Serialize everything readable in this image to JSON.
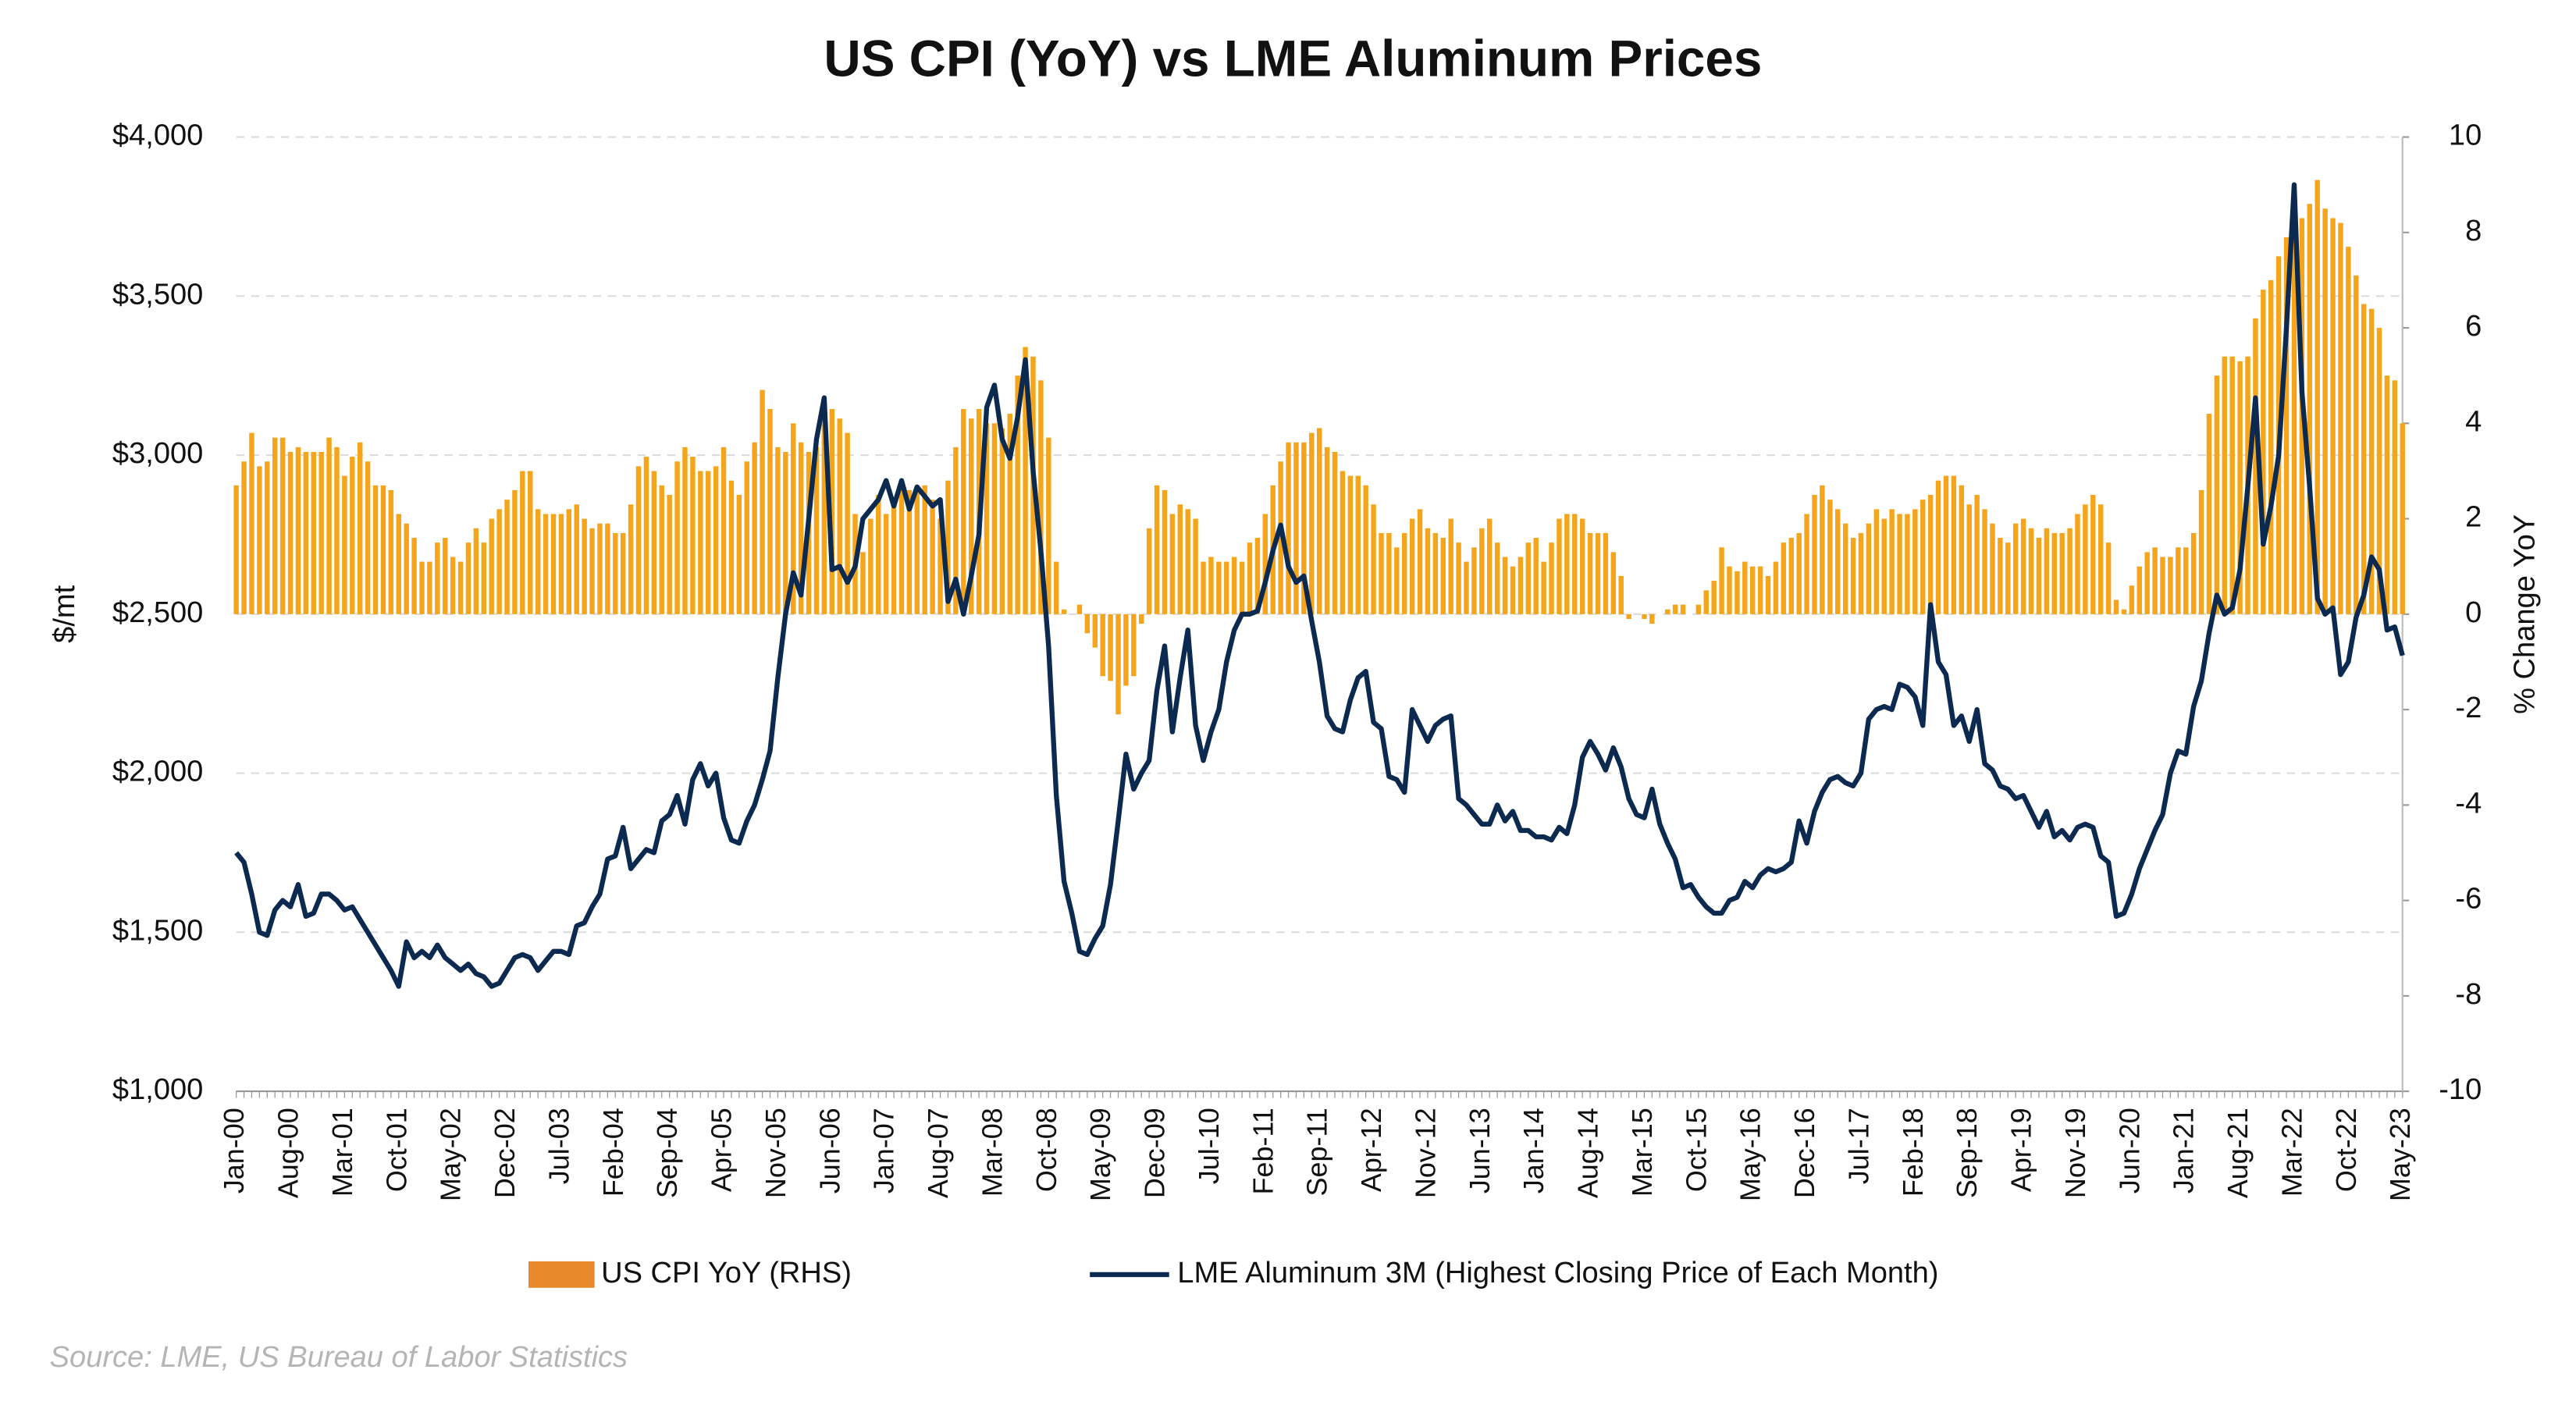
{
  "chart_data": {
    "type": "bar-line",
    "title": "US CPI (YoY) vs LME Aluminum Prices",
    "y_label": "$/mt",
    "y2_label": "% Change YoY",
    "source": "Source: LME, US Bureau of Labor Statistics",
    "grid": true,
    "legend": "bottom",
    "categories": [
      "Jan-00",
      null,
      null,
      null,
      null,
      null,
      null,
      "Aug-00",
      null,
      null,
      null,
      null,
      null,
      null,
      "Mar-01",
      null,
      null,
      null,
      null,
      null,
      null,
      "Oct-01",
      null,
      null,
      null,
      null,
      null,
      null,
      "May-02",
      null,
      null,
      null,
      null,
      null,
      null,
      "Dec-02",
      null,
      null,
      null,
      null,
      null,
      null,
      "Jul-03",
      null,
      null,
      null,
      null,
      null,
      null,
      "Feb-04",
      null,
      null,
      null,
      null,
      null,
      null,
      "Sep-04",
      null,
      null,
      null,
      null,
      null,
      null,
      "Apr-05",
      null,
      null,
      null,
      null,
      null,
      null,
      "Nov-05",
      null,
      null,
      null,
      null,
      null,
      null,
      "Jun-06",
      null,
      null,
      null,
      null,
      null,
      null,
      "Jan-07",
      null,
      null,
      null,
      null,
      null,
      null,
      "Aug-07",
      null,
      null,
      null,
      null,
      null,
      null,
      "Mar-08",
      null,
      null,
      null,
      null,
      null,
      null,
      "Oct-08",
      null,
      null,
      null,
      null,
      null,
      null,
      "May-09",
      null,
      null,
      null,
      null,
      null,
      null,
      "Dec-09",
      null,
      null,
      null,
      null,
      null,
      null,
      "Jul-10",
      null,
      null,
      null,
      null,
      null,
      null,
      "Feb-11",
      null,
      null,
      null,
      null,
      null,
      null,
      "Sep-11",
      null,
      null,
      null,
      null,
      null,
      null,
      "Apr-12",
      null,
      null,
      null,
      null,
      null,
      null,
      "Nov-12",
      null,
      null,
      null,
      null,
      null,
      null,
      "Jun-13",
      null,
      null,
      null,
      null,
      null,
      null,
      "Jan-14",
      null,
      null,
      null,
      null,
      null,
      null,
      "Aug-14",
      null,
      null,
      null,
      null,
      null,
      null,
      "Mar-15",
      null,
      null,
      null,
      null,
      null,
      null,
      "Oct-15",
      null,
      null,
      null,
      null,
      null,
      null,
      "May-16",
      null,
      null,
      null,
      null,
      null,
      null,
      "Dec-16",
      null,
      null,
      null,
      null,
      null,
      null,
      "Jul-17",
      null,
      null,
      null,
      null,
      null,
      null,
      "Feb-18",
      null,
      null,
      null,
      null,
      null,
      null,
      "Sep-18",
      null,
      null,
      null,
      null,
      null,
      null,
      "Apr-19",
      null,
      null,
      null,
      null,
      null,
      null,
      "Nov-19",
      null,
      null,
      null,
      null,
      null,
      null,
      "Jun-20",
      null,
      null,
      null,
      null,
      null,
      null,
      "Jan-21",
      null,
      null,
      null,
      null,
      null,
      null,
      "Aug-21",
      null,
      null,
      null,
      null,
      null,
      null,
      "Mar-22",
      null,
      null,
      null,
      null,
      null,
      null,
      "Oct-22",
      null,
      null,
      null,
      null,
      null,
      null,
      "May-23"
    ],
    "series": [
      {
        "name": "US CPI YoY (RHS)",
        "type": "bar",
        "axis": "y2",
        "color": "#f5a51c",
        "legend_color": "#e8892b",
        "values": [
          2.7,
          3.2,
          3.8,
          3.1,
          3.2,
          3.7,
          3.7,
          3.4,
          3.5,
          3.4,
          3.4,
          3.4,
          3.7,
          3.5,
          2.9,
          3.3,
          3.6,
          3.2,
          2.7,
          2.7,
          2.6,
          2.1,
          1.9,
          1.6,
          1.1,
          1.1,
          1.5,
          1.6,
          1.2,
          1.1,
          1.5,
          1.8,
          1.5,
          2.0,
          2.2,
          2.4,
          2.6,
          3.0,
          3.0,
          2.2,
          2.1,
          2.1,
          2.1,
          2.2,
          2.3,
          2.0,
          1.8,
          1.9,
          1.9,
          1.7,
          1.7,
          2.3,
          3.1,
          3.3,
          3.0,
          2.7,
          2.5,
          3.2,
          3.5,
          3.3,
          3.0,
          3.0,
          3.1,
          3.5,
          2.8,
          2.5,
          3.2,
          3.6,
          4.7,
          4.3,
          3.5,
          3.4,
          4.0,
          3.6,
          3.4,
          3.5,
          4.2,
          4.3,
          4.1,
          3.8,
          2.1,
          1.3,
          2.0,
          2.5,
          2.1,
          2.4,
          2.8,
          2.6,
          2.7,
          2.7,
          2.4,
          2.0,
          2.8,
          3.5,
          4.3,
          4.1,
          4.3,
          4.0,
          4.0,
          3.9,
          4.2,
          5.0,
          5.6,
          5.4,
          4.9,
          3.7,
          1.1,
          0.1,
          0.0,
          0.2,
          -0.4,
          -0.7,
          -1.3,
          -1.4,
          -2.1,
          -1.5,
          -1.3,
          -0.2,
          1.8,
          2.7,
          2.6,
          2.1,
          2.3,
          2.2,
          2.0,
          1.1,
          1.2,
          1.1,
          1.1,
          1.2,
          1.1,
          1.5,
          1.6,
          2.1,
          2.7,
          3.2,
          3.6,
          3.6,
          3.6,
          3.8,
          3.9,
          3.5,
          3.4,
          3.0,
          2.9,
          2.9,
          2.7,
          2.3,
          1.7,
          1.7,
          1.4,
          1.7,
          2.0,
          2.2,
          1.8,
          1.7,
          1.6,
          2.0,
          1.5,
          1.1,
          1.4,
          1.8,
          2.0,
          1.5,
          1.2,
          1.0,
          1.2,
          1.5,
          1.6,
          1.1,
          1.5,
          2.0,
          2.1,
          2.1,
          2.0,
          1.7,
          1.7,
          1.7,
          1.3,
          0.8,
          -0.1,
          0.0,
          -0.1,
          -0.2,
          0.0,
          0.1,
          0.2,
          0.2,
          0.0,
          0.2,
          0.5,
          0.7,
          1.4,
          1.0,
          0.9,
          1.1,
          1.0,
          1.0,
          0.8,
          1.1,
          1.5,
          1.6,
          1.7,
          2.1,
          2.5,
          2.7,
          2.4,
          2.2,
          1.9,
          1.6,
          1.7,
          1.9,
          2.2,
          2.0,
          2.2,
          2.1,
          2.1,
          2.2,
          2.4,
          2.5,
          2.8,
          2.9,
          2.9,
          2.7,
          2.3,
          2.5,
          2.2,
          1.9,
          1.6,
          1.5,
          1.9,
          2.0,
          1.8,
          1.6,
          1.8,
          1.7,
          1.7,
          1.8,
          2.1,
          2.3,
          2.5,
          2.3,
          1.5,
          0.3,
          0.1,
          0.6,
          1.0,
          1.3,
          1.4,
          1.2,
          1.2,
          1.4,
          1.4,
          1.7,
          2.6,
          4.2,
          5.0,
          5.4,
          5.4,
          5.3,
          5.4,
          6.2,
          6.8,
          7.0,
          7.5,
          7.9,
          8.5,
          8.3,
          8.6,
          9.1,
          8.5,
          8.3,
          8.2,
          7.7,
          7.1,
          6.5,
          6.4,
          6.0,
          5.0,
          4.9,
          4.0
        ]
      },
      {
        "name": "LME Aluminum 3M (Highest Closing Price of Each Month)",
        "type": "line",
        "axis": "y",
        "color": "#0c2a4f",
        "values": [
          1750,
          1720,
          1620,
          1500,
          1490,
          1570,
          1600,
          1580,
          1650,
          1550,
          1560,
          1620,
          1620,
          1600,
          1570,
          1580,
          1540,
          1500,
          1460,
          1420,
          1380,
          1330,
          1470,
          1420,
          1440,
          1420,
          1460,
          1420,
          1400,
          1380,
          1400,
          1370,
          1360,
          1330,
          1340,
          1380,
          1420,
          1430,
          1420,
          1380,
          1410,
          1440,
          1440,
          1430,
          1520,
          1530,
          1580,
          1620,
          1730,
          1740,
          1830,
          1700,
          1730,
          1760,
          1750,
          1850,
          1870,
          1930,
          1840,
          1980,
          2030,
          1960,
          2000,
          1860,
          1790,
          1780,
          1850,
          1900,
          1980,
          2070,
          2300,
          2500,
          2630,
          2560,
          2800,
          3050,
          3180,
          2640,
          2650,
          2600,
          2650,
          2800,
          2830,
          2860,
          2920,
          2840,
          2920,
          2830,
          2900,
          2870,
          2840,
          2860,
          2540,
          2610,
          2500,
          2620,
          2750,
          3150,
          3220,
          3050,
          2990,
          3120,
          3300,
          2950,
          2700,
          2400,
          1930,
          1660,
          1560,
          1440,
          1430,
          1480,
          1520,
          1650,
          1850,
          2060,
          1950,
          2000,
          2040,
          2260,
          2400,
          2130,
          2300,
          2450,
          2150,
          2040,
          2130,
          2200,
          2350,
          2450,
          2500,
          2500,
          2510,
          2600,
          2700,
          2780,
          2650,
          2600,
          2620,
          2480,
          2350,
          2180,
          2140,
          2130,
          2230,
          2300,
          2320,
          2160,
          2140,
          1990,
          1980,
          1940,
          2200,
          2150,
          2100,
          2150,
          2170,
          2180,
          1920,
          1900,
          1870,
          1840,
          1840,
          1900,
          1850,
          1880,
          1820,
          1820,
          1800,
          1800,
          1790,
          1830,
          1810,
          1900,
          2050,
          2100,
          2060,
          2010,
          2080,
          2020,
          1920,
          1870,
          1860,
          1950,
          1840,
          1780,
          1730,
          1640,
          1650,
          1610,
          1580,
          1560,
          1560,
          1600,
          1610,
          1660,
          1640,
          1680,
          1700,
          1690,
          1700,
          1720,
          1850,
          1780,
          1880,
          1940,
          1980,
          1990,
          1970,
          1960,
          2000,
          2170,
          2200,
          2210,
          2200,
          2280,
          2270,
          2240,
          2150,
          2530,
          2350,
          2310,
          2150,
          2180,
          2100,
          2200,
          2030,
          2010,
          1960,
          1950,
          1920,
          1930,
          1880,
          1830,
          1880,
          1800,
          1820,
          1790,
          1830,
          1840,
          1830,
          1740,
          1720,
          1550,
          1560,
          1620,
          1700,
          1760,
          1820,
          1870,
          2000,
          2070,
          2060,
          2210,
          2290,
          2440,
          2560,
          2500,
          2520,
          2640,
          2900,
          3180,
          2720,
          2840,
          3000,
          3400,
          3850,
          3200,
          2900,
          2550,
          2500,
          2520,
          2310,
          2350,
          2490,
          2560,
          2680,
          2640,
          2450,
          2460,
          2370
        ]
      }
    ],
    "ylim": [
      1000,
      4000
    ],
    "yticks": [
      {
        "value": 1000,
        "label": "$1,000"
      },
      {
        "value": 1500,
        "label": "$1,500"
      },
      {
        "value": 2000,
        "label": "$2,000"
      },
      {
        "value": 2500,
        "label": "$2,500"
      },
      {
        "value": 3000,
        "label": "$3,000"
      },
      {
        "value": 3500,
        "label": "$3,500"
      },
      {
        "value": 4000,
        "label": "$4,000"
      }
    ],
    "y2lim": [
      -10,
      10
    ],
    "y2ticks": [
      -10,
      -8,
      -6,
      -4,
      -2,
      0,
      2,
      4,
      6,
      8,
      10
    ]
  }
}
